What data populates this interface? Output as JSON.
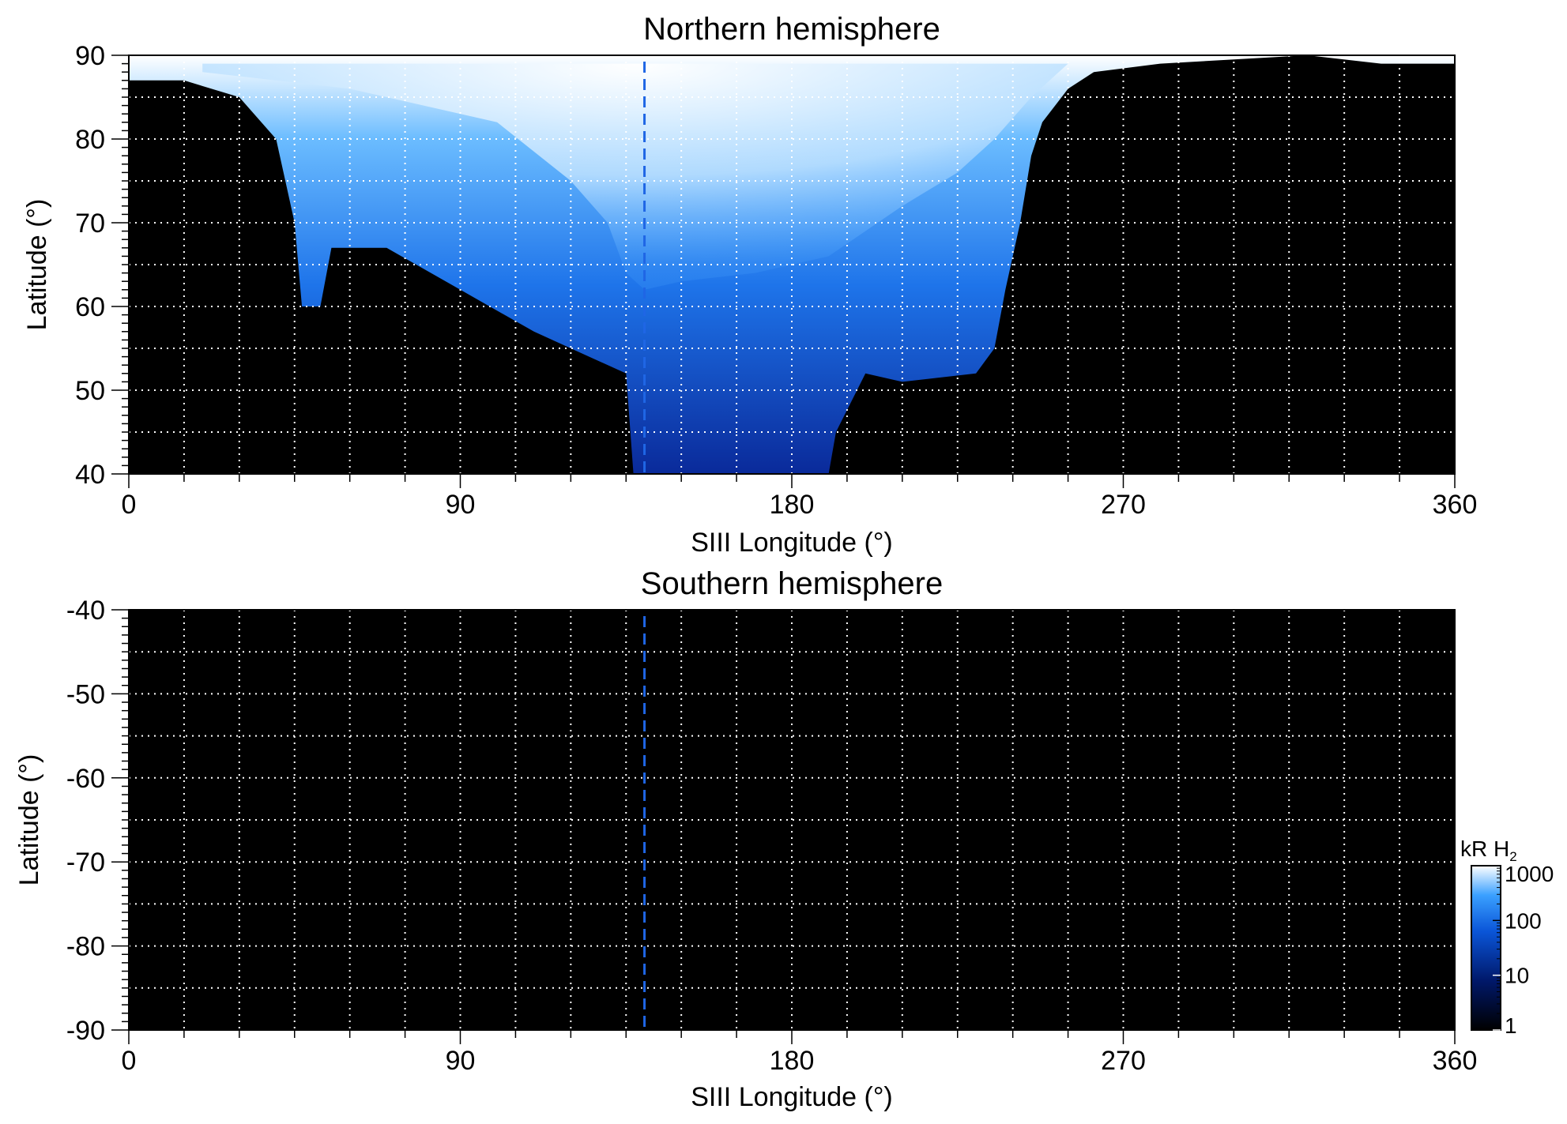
{
  "chart_data": [
    {
      "type": "heatmap",
      "title": "Northern hemisphere",
      "xlabel": "SIII Longitude (°)",
      "ylabel": "Latitude (°)",
      "xlim": [
        0,
        360
      ],
      "ylim": [
        40,
        90
      ],
      "xticks": [
        0,
        90,
        180,
        270,
        360
      ],
      "yticks": [
        40,
        50,
        60,
        70,
        80,
        90
      ],
      "grid": true,
      "grid_x_step": 15,
      "grid_y_step": 5,
      "reference_longitude": 140,
      "description_color": "black background with blue-to-white auroral emission between ~50° and 90° latitude",
      "emission_outline": [
        [
          0,
          87
        ],
        [
          15,
          87
        ],
        [
          30,
          85
        ],
        [
          40,
          80
        ],
        [
          45,
          70
        ],
        [
          47,
          60
        ],
        [
          52,
          60
        ],
        [
          55,
          67
        ],
        [
          70,
          67
        ],
        [
          90,
          62
        ],
        [
          110,
          57
        ],
        [
          125,
          54
        ],
        [
          135,
          52
        ],
        [
          137,
          40
        ],
        [
          190,
          40
        ],
        [
          192,
          45
        ],
        [
          200,
          52
        ],
        [
          210,
          51
        ],
        [
          230,
          52
        ],
        [
          235,
          55
        ],
        [
          238,
          62
        ],
        [
          242,
          70
        ],
        [
          245,
          78
        ],
        [
          248,
          82
        ],
        [
          255,
          86
        ],
        [
          262,
          88
        ],
        [
          280,
          89
        ],
        [
          320,
          90
        ],
        [
          340,
          89
        ],
        [
          360,
          89
        ],
        [
          360,
          90
        ],
        [
          0,
          90
        ]
      ],
      "bright_region_outline": [
        [
          20,
          88
        ],
        [
          60,
          86
        ],
        [
          100,
          82
        ],
        [
          120,
          75
        ],
        [
          130,
          70
        ],
        [
          135,
          64
        ],
        [
          140,
          62
        ],
        [
          150,
          63
        ],
        [
          170,
          64
        ],
        [
          190,
          66
        ],
        [
          210,
          72
        ],
        [
          225,
          76
        ],
        [
          235,
          80
        ],
        [
          245,
          85
        ],
        [
          255,
          89
        ],
        [
          20,
          89
        ]
      ]
    },
    {
      "type": "heatmap",
      "title": "Southern hemisphere",
      "xlabel": "SIII Longitude (°)",
      "ylabel": "Latitude (°)",
      "xlim": [
        0,
        360
      ],
      "ylim": [
        -90,
        -40
      ],
      "xticks": [
        0,
        90,
        180,
        270,
        360
      ],
      "yticks": [
        -40,
        -50,
        -60,
        -70,
        -80,
        -90
      ],
      "grid": true,
      "grid_x_step": 15,
      "grid_y_step": 5,
      "reference_longitude": 140,
      "emission": "none"
    }
  ],
  "colorbar": {
    "label_main": "kR H",
    "label_sub": "2",
    "ticks": [
      "1000",
      "100",
      "10",
      "1"
    ],
    "scale": "log",
    "range": [
      1,
      1000
    ],
    "colors": [
      "#000000",
      "#00186a",
      "#0a55d8",
      "#3aa0ff",
      "#ffffff"
    ]
  },
  "colors": {
    "background": "#000000",
    "grid": "#ffffff",
    "reference_line": "#1f66e5",
    "emission_dim": "#0a2a9a",
    "emission_mid": "#1e74ea",
    "emission_bright": "#ffffff"
  }
}
